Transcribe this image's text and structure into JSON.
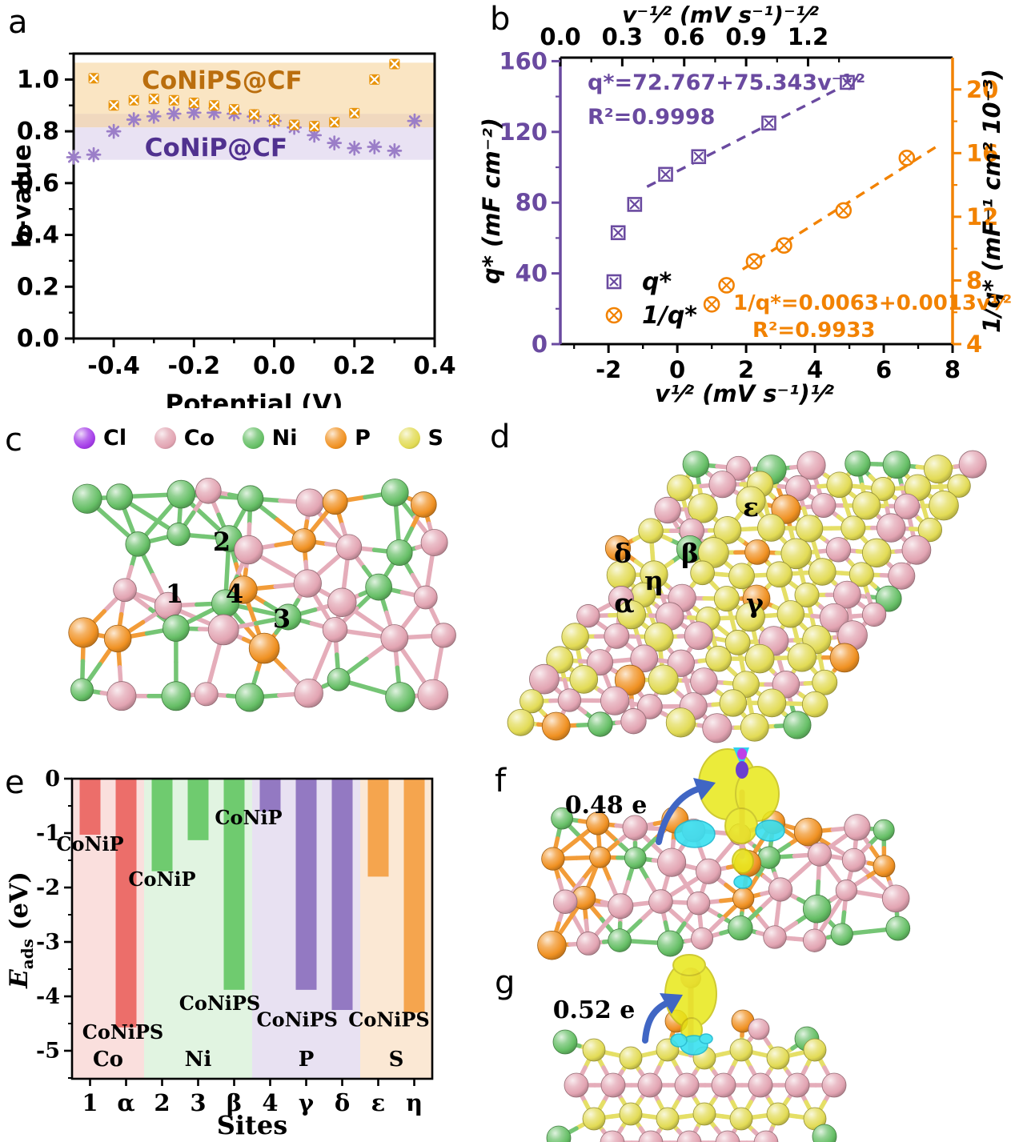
{
  "figure": {
    "panel_labels": {
      "a": "a",
      "b": "b",
      "c": "c",
      "d": "d",
      "e": "e",
      "f": "f",
      "g": "g"
    }
  },
  "chart_data": [
    {
      "id": "a",
      "type": "scatter",
      "xlabel": "Potential (V)",
      "ylabel": "b-value",
      "xlim": [
        -0.5,
        0.4
      ],
      "ylim": [
        0,
        1.1
      ],
      "xticks": [
        -0.4,
        -0.2,
        0.0,
        0.2,
        0.4
      ],
      "yticks": [
        0.0,
        0.2,
        0.4,
        0.6,
        0.8,
        1.0
      ],
      "grid": false,
      "bands": [
        {
          "label": "CoNiPS@CF",
          "text_color": "#BA6E0E",
          "fill": "#FAE5C3",
          "y_range": [
            0.815,
            1.065
          ],
          "label_pos": [
            -0.13,
            0.995
          ]
        },
        {
          "label": "CoNiP@CF",
          "text_color": "#50318F",
          "fill": "#E9E2F3",
          "y_range": [
            0.69,
            0.868
          ],
          "label_pos": [
            -0.145,
            0.735
          ]
        }
      ],
      "overlap_fill": "#F0D8BE",
      "series": [
        {
          "name": "CoNiPS@CF",
          "color": "#E8940C",
          "marker": "boxed-x",
          "x": [
            -0.45,
            -0.4,
            -0.35,
            -0.3,
            -0.25,
            -0.2,
            -0.15,
            -0.1,
            -0.05,
            0.0,
            0.05,
            0.1,
            0.15,
            0.2,
            0.25,
            0.3
          ],
          "y": [
            1.005,
            0.9,
            0.92,
            0.925,
            0.92,
            0.91,
            0.9,
            0.885,
            0.865,
            0.845,
            0.825,
            0.82,
            0.835,
            0.87,
            1.0,
            1.06
          ]
        },
        {
          "name": "CoNiP@CF",
          "color": "#9B7EC8",
          "marker": "asterisk",
          "x": [
            -0.5,
            -0.45,
            -0.4,
            -0.35,
            -0.3,
            -0.25,
            -0.2,
            -0.15,
            -0.1,
            -0.05,
            0.0,
            0.05,
            0.1,
            0.15,
            0.2,
            0.25,
            0.3,
            0.35
          ],
          "y": [
            0.7,
            0.71,
            0.8,
            0.845,
            0.858,
            0.868,
            0.872,
            0.872,
            0.868,
            0.857,
            0.84,
            0.815,
            0.785,
            0.755,
            0.735,
            0.74,
            0.725,
            0.84
          ]
        }
      ]
    },
    {
      "id": "b",
      "type": "scatter",
      "axes": {
        "bottom": {
          "label": "v¹⁄² (mV s⁻¹)¹⁄²",
          "lim": [
            -3.4,
            8.0
          ],
          "ticks": [
            -2,
            0,
            2,
            4,
            6,
            8
          ],
          "color": "#000000"
        },
        "top": {
          "label": "v⁻¹⁄² (mV s⁻¹)⁻¹⁄²",
          "lim": [
            0,
            1.9
          ],
          "ticks": [
            0.0,
            0.3,
            0.6,
            0.9,
            1.2
          ],
          "color": "#000000"
        },
        "left": {
          "label": "q* (mF cm⁻²)",
          "lim": [
            0,
            162
          ],
          "ticks": [
            0,
            40,
            80,
            120,
            160
          ],
          "color": "#6A4AA0"
        },
        "right": {
          "label": "1/q* (mF⁻¹ cm² 10⁻³)",
          "lim": [
            4,
            22
          ],
          "ticks": [
            4,
            8,
            12,
            16,
            20
          ],
          "color": "#F28200"
        }
      },
      "series": [
        {
          "name": "q*",
          "x_axis": "top",
          "y_axis": "left",
          "color": "#6A4AA0",
          "marker": "boxed-x",
          "x": [
            0.28,
            0.36,
            0.51,
            0.67,
            1.01,
            1.39
          ],
          "y": [
            63,
            79,
            96,
            106,
            125,
            148
          ],
          "fit_line": [
            [
              0.42,
              89
            ],
            [
              1.44,
              150
            ]
          ],
          "equation": "q*=72.767+75.343v⁻¹⁄²",
          "r_squared": "R²=0.9998"
        },
        {
          "name": "1/q*",
          "x_axis": "bottom",
          "y_axis": "right",
          "color": "#F28200",
          "marker": "circled-x",
          "x": [
            1.0,
            1.43,
            2.23,
            3.1,
            4.83,
            6.67
          ],
          "y": [
            6.5,
            7.7,
            9.2,
            10.2,
            12.4,
            15.7
          ],
          "fit_line": [
            [
              1.9,
              8.7
            ],
            [
              7.6,
              16.5
            ]
          ],
          "equation": "1/q*=0.0063+0.0013v¹⁄²",
          "r_squared": "R²=0.9933"
        }
      ],
      "legend": [
        "q*",
        "1/q*"
      ]
    },
    {
      "id": "e",
      "type": "bar",
      "xlabel": "Sites",
      "ylabel": {
        "symbol": "E",
        "subscript": "ads",
        "unit": " (eV)"
      },
      "ylim": [
        -5.5,
        0
      ],
      "yticks": [
        0,
        -1,
        -2,
        -3,
        -4,
        -5
      ],
      "categories": [
        "1",
        "α",
        "2",
        "3",
        "β",
        "4",
        "γ",
        "δ",
        "ε",
        "η"
      ],
      "values": [
        -1.03,
        -4.57,
        -1.7,
        -1.13,
        -3.88,
        -0.6,
        -3.88,
        -4.25,
        -1.8,
        -4.3
      ],
      "groups": [
        {
          "label": "Co",
          "bar_color": "#EC6E6A",
          "bg_color": "#FADFDD",
          "bars": [
            0,
            1
          ]
        },
        {
          "label": "Ni",
          "bar_color": "#6FCB6F",
          "bg_color": "#E1F4E1",
          "bars": [
            2,
            4
          ]
        },
        {
          "label": "P",
          "bar_color": "#9379C2",
          "bg_color": "#E8E1F2",
          "bars": [
            5,
            7
          ]
        },
        {
          "label": "S",
          "bar_color": "#F5A54E",
          "bg_color": "#FBE8D4",
          "bars": [
            8,
            9
          ]
        }
      ],
      "bar_annotations": [
        {
          "text": "CoNiP",
          "x": 0,
          "y": -1.32,
          "dx": 0
        },
        {
          "text": "CoNiPS",
          "x": 1,
          "y": -4.78,
          "dx": -4
        },
        {
          "text": "CoNiP",
          "x": 2,
          "y": -1.97,
          "dx": 0
        },
        {
          "text": "CoNiPS",
          "x": 4,
          "y": -4.25,
          "dx": -18
        },
        {
          "text": "CoNiP",
          "x": 4.4,
          "y": -0.84,
          "dx": 0
        },
        {
          "text": "CoNiPS",
          "x": 5.75,
          "y": -4.55,
          "dx": 0
        },
        {
          "text": "CoNiPS",
          "x": 8.3,
          "y": -4.55,
          "dx": 0
        }
      ]
    }
  ],
  "element_legend": {
    "items": [
      {
        "symbol": "Cl",
        "color": "#A43CE8"
      },
      {
        "symbol": "Co",
        "color": "#E2A4B2"
      },
      {
        "symbol": "Ni",
        "color": "#66BF66"
      },
      {
        "symbol": "P",
        "color": "#F09122"
      },
      {
        "symbol": "S",
        "color": "#E2DB55"
      }
    ]
  },
  "structures": {
    "c": {
      "site_labels": [
        "1",
        "2",
        "3",
        "4"
      ]
    },
    "d": {
      "site_labels": [
        "δ",
        "β",
        "ε",
        "η",
        "α",
        "γ"
      ]
    },
    "f": {
      "charge_label": "0.48 e"
    },
    "g": {
      "charge_label": "0.52 e"
    }
  }
}
